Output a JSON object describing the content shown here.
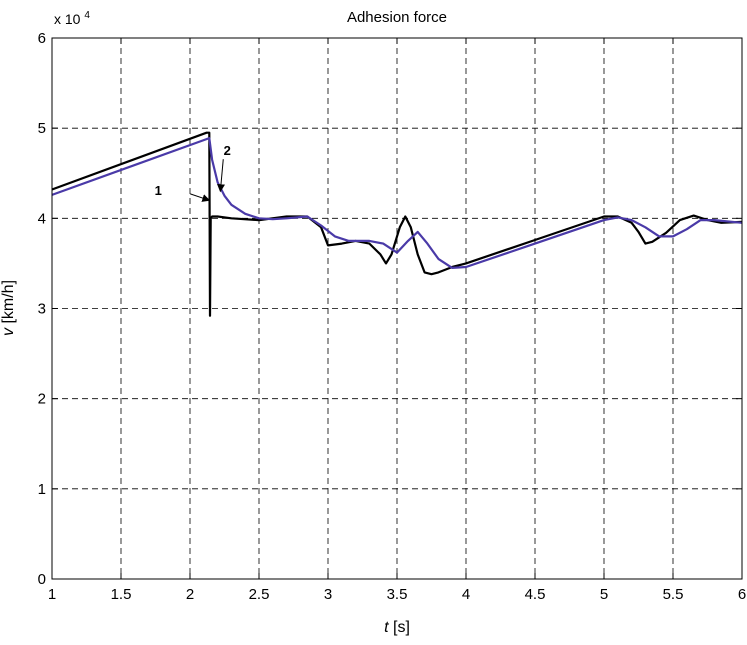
{
  "chart_data": {
    "type": "line",
    "title": "Adhesion force",
    "xlabel_var": "t",
    "xlabel_unit": " [s]",
    "ylabel_var": "v",
    "ylabel_unit": " [km/h]",
    "y_multiplier_base": "x 10",
    "y_multiplier_exp": "4",
    "xlim": [
      1,
      6
    ],
    "ylim": [
      0,
      6
    ],
    "x_ticks": [
      1,
      1.5,
      2,
      2.5,
      3,
      3.5,
      4,
      4.5,
      5,
      5.5,
      6
    ],
    "x_tick_labels": [
      "1",
      "1.5",
      "2",
      "2.5",
      "3",
      "3.5",
      "4",
      "4.5",
      "5",
      "5.5",
      "6"
    ],
    "y_ticks": [
      0,
      1,
      2,
      3,
      4,
      5,
      6
    ],
    "y_tick_labels": [
      "0",
      "1",
      "2",
      "3",
      "4",
      "5",
      "6"
    ],
    "grid": true,
    "grid_style": "dashed",
    "series": [
      {
        "name": "1",
        "color": "#000000",
        "x": [
          1.0,
          2.12,
          2.14,
          2.145,
          2.15,
          2.16,
          2.2,
          2.3,
          2.5,
          2.7,
          2.85,
          2.95,
          3.0,
          3.1,
          3.2,
          3.3,
          3.38,
          3.42,
          3.46,
          3.52,
          3.56,
          3.6,
          3.65,
          3.7,
          3.75,
          3.8,
          3.9,
          4.0,
          4.5,
          5.0,
          5.1,
          5.2,
          5.25,
          5.3,
          5.35,
          5.45,
          5.55,
          5.65,
          5.75,
          5.85,
          6.0
        ],
        "y": [
          4.32,
          4.95,
          4.95,
          2.92,
          4.0,
          4.02,
          4.02,
          4.0,
          3.98,
          4.02,
          4.02,
          3.9,
          3.7,
          3.72,
          3.75,
          3.72,
          3.6,
          3.5,
          3.6,
          3.9,
          4.02,
          3.9,
          3.6,
          3.4,
          3.38,
          3.4,
          3.46,
          3.5,
          3.76,
          4.02,
          4.02,
          3.95,
          3.85,
          3.72,
          3.74,
          3.84,
          3.98,
          4.03,
          3.98,
          3.95,
          3.96
        ]
      },
      {
        "name": "2",
        "color": "#4a3aa8",
        "x": [
          1.0,
          2.14,
          2.16,
          2.2,
          2.25,
          2.3,
          2.4,
          2.5,
          2.6,
          2.7,
          2.85,
          2.95,
          3.05,
          3.15,
          3.3,
          3.4,
          3.5,
          3.58,
          3.65,
          3.72,
          3.8,
          3.9,
          4.0,
          4.5,
          5.0,
          5.1,
          5.2,
          5.3,
          5.4,
          5.5,
          5.6,
          5.7,
          5.8,
          6.0
        ],
        "y": [
          4.26,
          4.89,
          4.65,
          4.4,
          4.25,
          4.15,
          4.05,
          4.0,
          3.99,
          4.0,
          4.02,
          3.92,
          3.8,
          3.75,
          3.75,
          3.72,
          3.62,
          3.75,
          3.85,
          3.72,
          3.55,
          3.45,
          3.46,
          3.72,
          3.98,
          4.01,
          3.98,
          3.9,
          3.8,
          3.8,
          3.88,
          3.98,
          3.98,
          3.95
        ]
      }
    ],
    "annotations": [
      {
        "text": "1",
        "x": 1.77,
        "y": 4.26,
        "arrow_to": [
          2.14,
          4.2
        ]
      },
      {
        "text": "2",
        "x": 2.27,
        "y": 4.7,
        "arrow_to": [
          2.22,
          4.3
        ]
      }
    ]
  }
}
